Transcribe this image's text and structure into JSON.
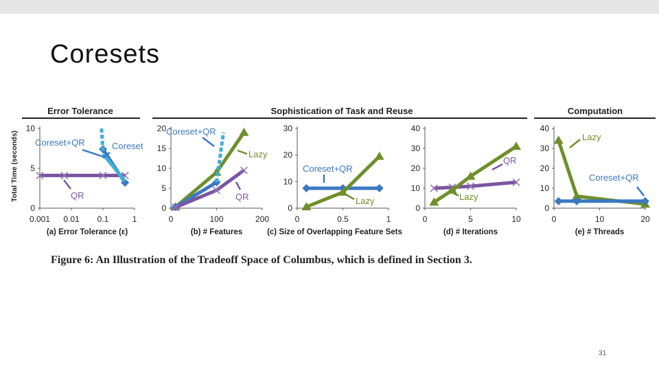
{
  "slide": {
    "title": "Coresets",
    "page_number": "31"
  },
  "figure": {
    "caption": "Figure 6:  An Illustration of the Tradeoff Space of Columbus, which is defined in Section 3.",
    "group_headers": [
      "Error Tolerance",
      "Sophistication of Task and Reuse",
      "Computation"
    ],
    "y_axis_label": "Total Time (seconds)"
  },
  "colors": {
    "coreset_qr": "#3a78c2",
    "coreset": "#3fb0d8",
    "qr": "#7a55a0",
    "lazy": "#6f8f2a",
    "annotation_blue": "#3a78c2"
  },
  "chart_data": [
    {
      "type": "line",
      "id": "a",
      "xlabel": "(a) Error Tolerance (ε)",
      "xscale": "log",
      "xlim": [
        0.001,
        1
      ],
      "ylim": [
        0,
        10
      ],
      "xticks": [
        "0.001",
        "0.01",
        "0.1",
        "1"
      ],
      "yticks": [
        "0",
        "5",
        "10"
      ],
      "series": [
        {
          "name": "QR",
          "color": "#7a55a0",
          "marker": "x",
          "x": [
            0.001,
            0.006,
            0.1,
            0.5
          ],
          "y": [
            4.1,
            4.1,
            4.1,
            4.1
          ]
        },
        {
          "name": "Coreset+QR",
          "color": "#3a78c2",
          "marker": "diamond",
          "x": [
            0.1,
            0.5
          ],
          "y": [
            7.4,
            3.2
          ]
        },
        {
          "name": "Coreset",
          "color": "#3fb0d8",
          "marker": "none",
          "x": [
            0.1,
            0.5
          ],
          "y": [
            6.8,
            3.4
          ]
        },
        {
          "name": "",
          "color": "#3fb0d8",
          "marker": "none",
          "dashed": true,
          "x": [
            0.09,
            0.1
          ],
          "y": [
            10,
            7.2
          ]
        }
      ],
      "annotations": [
        "Coreset+QR",
        "Coreset",
        "QR"
      ]
    },
    {
      "type": "line",
      "id": "b",
      "xlabel": "(b) # Features",
      "xlim": [
        0,
        200
      ],
      "ylim": [
        0,
        20
      ],
      "xticks": [
        "0",
        "100",
        "200"
      ],
      "yticks": [
        "0",
        "5",
        "10",
        "15",
        "20"
      ],
      "series": [
        {
          "name": "Lazy",
          "color": "#6f8f2a",
          "marker": "triangle",
          "x": [
            10,
            100,
            160
          ],
          "y": [
            0.3,
            9,
            19
          ]
        },
        {
          "name": "Coreset+QR",
          "color": "#3a78c2",
          "marker": "diamond",
          "x": [
            10,
            100
          ],
          "y": [
            0.3,
            6.5
          ]
        },
        {
          "name": "",
          "color": "#3fb0d8",
          "marker": "none",
          "dashed": true,
          "x": [
            100,
            115
          ],
          "y": [
            6.5,
            19
          ]
        },
        {
          "name": "QR",
          "color": "#7a55a0",
          "marker": "x",
          "x": [
            10,
            100,
            160
          ],
          "y": [
            0.2,
            4.5,
            9.5
          ]
        }
      ],
      "annotations": [
        "Coreset+QR",
        "Lazy",
        "QR"
      ]
    },
    {
      "type": "line",
      "id": "c",
      "xlabel": "(c) Size of Overlapping Feature Sets",
      "xlim": [
        0,
        1
      ],
      "ylim": [
        0,
        30
      ],
      "xticks": [
        "0",
        "0.5",
        "1"
      ],
      "yticks": [
        "0",
        "10",
        "20",
        "30"
      ],
      "series": [
        {
          "name": "Coreset+QR",
          "color": "#3a78c2",
          "marker": "diamond",
          "x": [
            0.1,
            0.5,
            0.9
          ],
          "y": [
            7.5,
            7.5,
            7.5
          ]
        },
        {
          "name": "Lazy",
          "color": "#6f8f2a",
          "marker": "triangle",
          "x": [
            0.1,
            0.5,
            0.9
          ],
          "y": [
            0.5,
            6,
            19.5
          ]
        }
      ],
      "annotations": [
        "Coreset+QR",
        "Lazy"
      ]
    },
    {
      "type": "line",
      "id": "d",
      "xlabel": "(d) # Iterations",
      "xlim": [
        0,
        10
      ],
      "ylim": [
        0,
        40
      ],
      "xticks": [
        "0",
        "5",
        "10"
      ],
      "yticks": [
        "0",
        "10",
        "20",
        "30",
        "40"
      ],
      "series": [
        {
          "name": "QR",
          "color": "#7a55a0",
          "marker": "x",
          "x": [
            1,
            3,
            5,
            10
          ],
          "y": [
            10,
            10.5,
            11,
            13
          ]
        },
        {
          "name": "Lazy",
          "color": "#6f8f2a",
          "marker": "triangle",
          "x": [
            1,
            3,
            5,
            10
          ],
          "y": [
            3,
            9,
            16,
            31
          ]
        }
      ],
      "annotations": [
        "QR",
        "Lazy"
      ]
    },
    {
      "type": "line",
      "id": "e",
      "xlabel": "(e) # Threads",
      "xlim": [
        0,
        20
      ],
      "ylim": [
        0,
        40
      ],
      "xticks": [
        "0",
        "10",
        "20"
      ],
      "yticks": [
        "0",
        "10",
        "20",
        "30",
        "40"
      ],
      "series": [
        {
          "name": "Lazy",
          "color": "#6f8f2a",
          "marker": "triangle",
          "x": [
            1,
            5,
            20
          ],
          "y": [
            34,
            6,
            2
          ]
        },
        {
          "name": "Coreset+QR",
          "color": "#3a78c2",
          "marker": "diamond",
          "x": [
            1,
            5,
            20
          ],
          "y": [
            3.5,
            3.5,
            3.5
          ]
        }
      ],
      "annotations": [
        "Lazy",
        "Coreset+QR"
      ]
    }
  ]
}
